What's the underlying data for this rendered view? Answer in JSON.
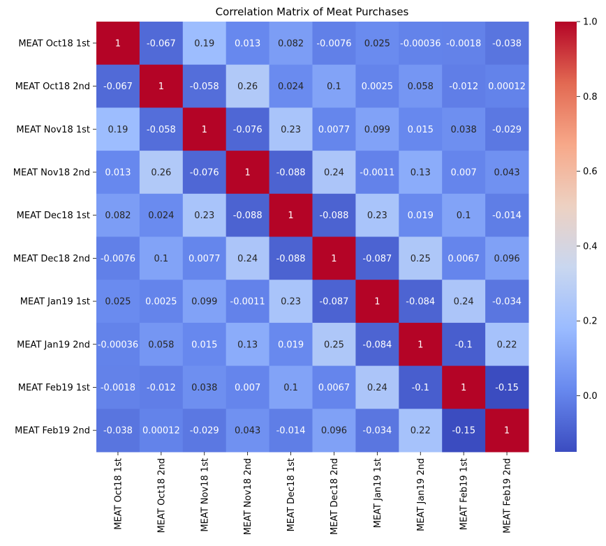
{
  "chart_data": {
    "type": "heatmap",
    "title": "Correlation Matrix of Meat Purchases",
    "xlabel": "",
    "ylabel": "",
    "x_categories": [
      "MEAT Oct18 1st",
      "MEAT Oct18 2nd",
      "MEAT Nov18 1st",
      "MEAT Nov18 2nd",
      "MEAT Dec18 1st",
      "MEAT Dec18 2nd",
      "MEAT Jan19 1st",
      "MEAT Jan19 2nd",
      "MEAT Feb19 1st",
      "MEAT Feb19 2nd"
    ],
    "y_categories": [
      "MEAT Oct18 1st",
      "MEAT Oct18 2nd",
      "MEAT Nov18 1st",
      "MEAT Nov18 2nd",
      "MEAT Dec18 1st",
      "MEAT Dec18 2nd",
      "MEAT Jan19 1st",
      "MEAT Jan19 2nd",
      "MEAT Feb19 1st",
      "MEAT Feb19 2nd"
    ],
    "values": [
      [
        1,
        -0.067,
        0.19,
        0.013,
        0.082,
        -0.0076,
        0.025,
        -0.00036,
        -0.0018,
        -0.038
      ],
      [
        -0.067,
        1,
        -0.058,
        0.26,
        0.024,
        0.1,
        0.0025,
        0.058,
        -0.012,
        0.00012
      ],
      [
        0.19,
        -0.058,
        1,
        -0.076,
        0.23,
        0.0077,
        0.099,
        0.015,
        0.038,
        -0.029
      ],
      [
        0.013,
        0.26,
        -0.076,
        1,
        -0.088,
        0.24,
        -0.0011,
        0.13,
        0.007,
        0.043
      ],
      [
        0.082,
        0.024,
        0.23,
        -0.088,
        1,
        -0.088,
        0.23,
        0.019,
        0.1,
        -0.014
      ],
      [
        -0.0076,
        0.1,
        0.0077,
        0.24,
        -0.088,
        1,
        -0.087,
        0.25,
        0.0067,
        0.096
      ],
      [
        0.025,
        0.0025,
        0.099,
        -0.0011,
        0.23,
        -0.087,
        1,
        -0.084,
        0.24,
        -0.034
      ],
      [
        -0.00036,
        0.058,
        0.015,
        0.13,
        0.019,
        0.25,
        -0.084,
        1,
        -0.1,
        0.22
      ],
      [
        -0.0018,
        -0.012,
        0.038,
        0.007,
        0.1,
        0.0067,
        0.24,
        -0.1,
        1,
        -0.15
      ],
      [
        -0.038,
        0.00012,
        -0.029,
        0.043,
        -0.014,
        0.096,
        -0.034,
        0.22,
        -0.15,
        1
      ]
    ],
    "cell_labels": [
      [
        "1",
        "-0.067",
        "0.19",
        "0.013",
        "0.082",
        "-0.0076",
        "0.025",
        "-0.00036",
        "-0.0018",
        "-0.038"
      ],
      [
        "-0.067",
        "1",
        "-0.058",
        "0.26",
        "0.024",
        "0.1",
        "0.0025",
        "0.058",
        "-0.012",
        "0.00012"
      ],
      [
        "0.19",
        "-0.058",
        "1",
        "-0.076",
        "0.23",
        "0.0077",
        "0.099",
        "0.015",
        "0.038",
        "-0.029"
      ],
      [
        "0.013",
        "0.26",
        "-0.076",
        "1",
        "-0.088",
        "0.24",
        "-0.0011",
        "0.13",
        "0.007",
        "0.043"
      ],
      [
        "0.082",
        "0.024",
        "0.23",
        "-0.088",
        "1",
        "-0.088",
        "0.23",
        "0.019",
        "0.1",
        "-0.014"
      ],
      [
        "-0.0076",
        "0.1",
        "0.0077",
        "0.24",
        "-0.088",
        "1",
        "-0.087",
        "0.25",
        "0.0067",
        "0.096"
      ],
      [
        "0.025",
        "0.0025",
        "0.099",
        "-0.0011",
        "0.23",
        "-0.087",
        "1",
        "-0.084",
        "0.24",
        "-0.034"
      ],
      [
        "-0.00036",
        "0.058",
        "0.015",
        "0.13",
        "0.019",
        "0.25",
        "-0.084",
        "1",
        "-0.1",
        "0.22"
      ],
      [
        "-0.0018",
        "-0.012",
        "0.038",
        "0.007",
        "0.1",
        "0.0067",
        "0.24",
        "-0.1",
        "1",
        "-0.15"
      ],
      [
        "-0.038",
        "0.00012",
        "-0.029",
        "0.043",
        "-0.014",
        "0.096",
        "-0.034",
        "0.22",
        "-0.15",
        "1"
      ]
    ],
    "colormap": "coolwarm",
    "colormap_stops": [
      "#3b4cc0",
      "#6788ee",
      "#9abbff",
      "#c9d7f0",
      "#edd1c2",
      "#f7a889",
      "#e26952",
      "#b40426"
    ],
    "vmin": -0.15,
    "vmax": 1,
    "colorbar_ticks": [
      {
        "value": 1.0,
        "label": "1.0"
      },
      {
        "value": 0.8,
        "label": "0.8"
      },
      {
        "value": 0.6,
        "label": "0.6"
      },
      {
        "value": 0.4,
        "label": "0.4"
      },
      {
        "value": 0.2,
        "label": "0.2"
      },
      {
        "value": 0.0,
        "label": "0.0"
      }
    ],
    "text_color_dark": "#262626",
    "text_color_light": "#ffffff"
  }
}
